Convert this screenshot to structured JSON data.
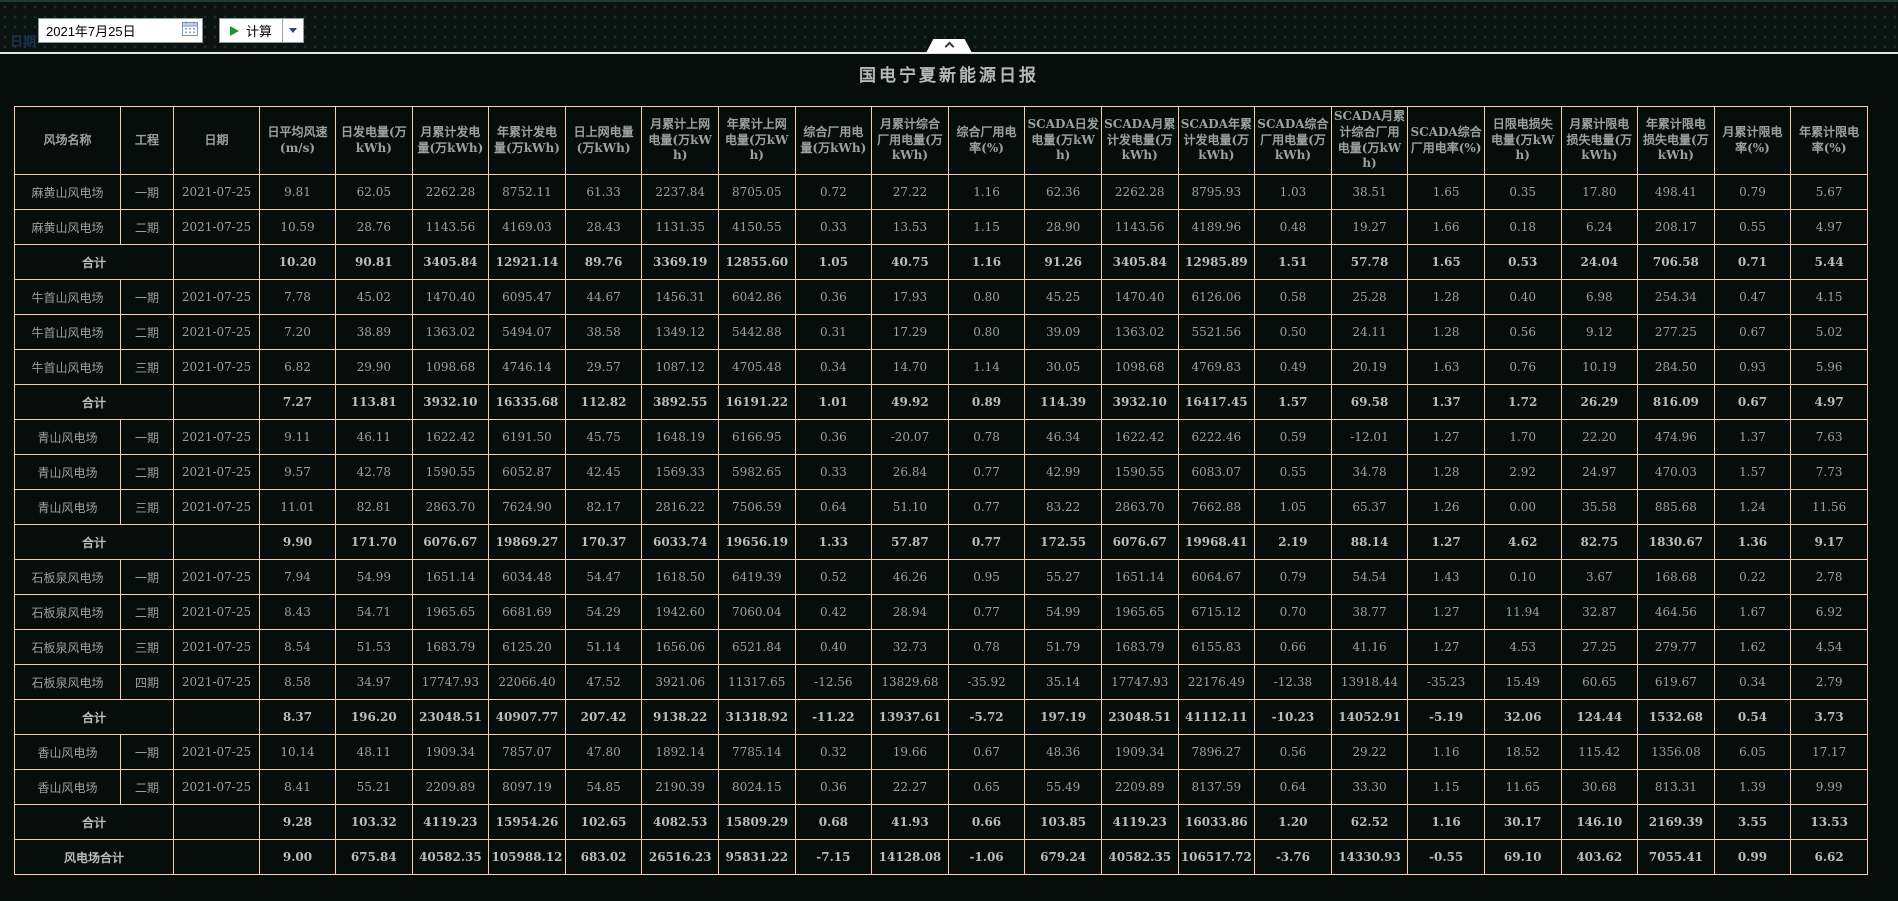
{
  "toolbar": {
    "date_label": "日期",
    "date_value": "2021年7月25日",
    "calc_button_label": "计算"
  },
  "report": {
    "title": "国电宁夏新能源日报"
  },
  "colors": {
    "table_border": "#f5cbb5",
    "table_text": "#9ba19f",
    "toolbar_bg": "#0b1310",
    "content_bg": "#070d0a",
    "play_green": "#169a2c"
  },
  "table": {
    "headers": [
      "风场名称",
      "工程",
      "日期",
      "日平均风速(m/s)",
      "日发电量(万kWh)",
      "月累计发电量(万kWh)",
      "年累计发电量(万kWh)",
      "日上网电量(万kWh)",
      "月累计上网电量(万kWh)",
      "年累计上网电量(万kWh)",
      "综合厂用电量(万kWh)",
      "月累计综合厂用电量(万kWh)",
      "综合厂用电率(%)",
      "SCADA日发电量(万kWh)",
      "SCADA月累计发电量(万kWh)",
      "SCADA年累计发电量(万kWh)",
      "SCADA综合厂用电量(万kWh)",
      "SCADA月累计综合厂用电量(万kWh)",
      "SCADA综合厂用电率(%)",
      "日限电损失电量(万kWh)",
      "月累计限电损失电量(万kWh)",
      "年累计限电损失电量(万kWh)",
      "月累计限电率(%)",
      "年累计限电率(%)"
    ],
    "rows": [
      {
        "total": false,
        "cells": [
          "麻黄山风电场",
          "一期",
          "2021-07-25",
          "9.81",
          "62.05",
          "2262.28",
          "8752.11",
          "61.33",
          "2237.84",
          "8705.05",
          "0.72",
          "27.22",
          "1.16",
          "62.36",
          "2262.28",
          "8795.93",
          "1.03",
          "38.51",
          "1.65",
          "0.35",
          "17.80",
          "498.41",
          "0.79",
          "5.67"
        ]
      },
      {
        "total": false,
        "cells": [
          "麻黄山风电场",
          "二期",
          "2021-07-25",
          "10.59",
          "28.76",
          "1143.56",
          "4169.03",
          "28.43",
          "1131.35",
          "4150.55",
          "0.33",
          "13.53",
          "1.15",
          "28.90",
          "1143.56",
          "4189.96",
          "0.48",
          "19.27",
          "1.66",
          "0.18",
          "6.24",
          "208.17",
          "0.55",
          "4.97"
        ]
      },
      {
        "total": true,
        "cells": [
          "合计",
          "",
          "",
          "10.20",
          "90.81",
          "3405.84",
          "12921.14",
          "89.76",
          "3369.19",
          "12855.60",
          "1.05",
          "40.75",
          "1.16",
          "91.26",
          "3405.84",
          "12985.89",
          "1.51",
          "57.78",
          "1.65",
          "0.53",
          "24.04",
          "706.58",
          "0.71",
          "5.44"
        ]
      },
      {
        "total": false,
        "cells": [
          "牛首山风电场",
          "一期",
          "2021-07-25",
          "7.78",
          "45.02",
          "1470.40",
          "6095.47",
          "44.67",
          "1456.31",
          "6042.86",
          "0.36",
          "17.93",
          "0.80",
          "45.25",
          "1470.40",
          "6126.06",
          "0.58",
          "25.28",
          "1.28",
          "0.40",
          "6.98",
          "254.34",
          "0.47",
          "4.15"
        ]
      },
      {
        "total": false,
        "cells": [
          "牛首山风电场",
          "二期",
          "2021-07-25",
          "7.20",
          "38.89",
          "1363.02",
          "5494.07",
          "38.58",
          "1349.12",
          "5442.88",
          "0.31",
          "17.29",
          "0.80",
          "39.09",
          "1363.02",
          "5521.56",
          "0.50",
          "24.11",
          "1.28",
          "0.56",
          "9.12",
          "277.25",
          "0.67",
          "5.02"
        ]
      },
      {
        "total": false,
        "cells": [
          "牛首山风电场",
          "三期",
          "2021-07-25",
          "6.82",
          "29.90",
          "1098.68",
          "4746.14",
          "29.57",
          "1087.12",
          "4705.48",
          "0.34",
          "14.70",
          "1.14",
          "30.05",
          "1098.68",
          "4769.83",
          "0.49",
          "20.19",
          "1.63",
          "0.76",
          "10.19",
          "284.50",
          "0.93",
          "5.96"
        ]
      },
      {
        "total": true,
        "cells": [
          "合计",
          "",
          "",
          "7.27",
          "113.81",
          "3932.10",
          "16335.68",
          "112.82",
          "3892.55",
          "16191.22",
          "1.01",
          "49.92",
          "0.89",
          "114.39",
          "3932.10",
          "16417.45",
          "1.57",
          "69.58",
          "1.37",
          "1.72",
          "26.29",
          "816.09",
          "0.67",
          "4.97"
        ]
      },
      {
        "total": false,
        "cells": [
          "青山风电场",
          "一期",
          "2021-07-25",
          "9.11",
          "46.11",
          "1622.42",
          "6191.50",
          "45.75",
          "1648.19",
          "6166.95",
          "0.36",
          "-20.07",
          "0.78",
          "46.34",
          "1622.42",
          "6222.46",
          "0.59",
          "-12.01",
          "1.27",
          "1.70",
          "22.20",
          "474.96",
          "1.37",
          "7.63"
        ]
      },
      {
        "total": false,
        "cells": [
          "青山风电场",
          "二期",
          "2021-07-25",
          "9.57",
          "42.78",
          "1590.55",
          "6052.87",
          "42.45",
          "1569.33",
          "5982.65",
          "0.33",
          "26.84",
          "0.77",
          "42.99",
          "1590.55",
          "6083.07",
          "0.55",
          "34.78",
          "1.28",
          "2.92",
          "24.97",
          "470.03",
          "1.57",
          "7.73"
        ]
      },
      {
        "total": false,
        "cells": [
          "青山风电场",
          "三期",
          "2021-07-25",
          "11.01",
          "82.81",
          "2863.70",
          "7624.90",
          "82.17",
          "2816.22",
          "7506.59",
          "0.64",
          "51.10",
          "0.77",
          "83.22",
          "2863.70",
          "7662.88",
          "1.05",
          "65.37",
          "1.26",
          "0.00",
          "35.58",
          "885.68",
          "1.24",
          "11.56"
        ]
      },
      {
        "total": true,
        "cells": [
          "合计",
          "",
          "",
          "9.90",
          "171.70",
          "6076.67",
          "19869.27",
          "170.37",
          "6033.74",
          "19656.19",
          "1.33",
          "57.87",
          "0.77",
          "172.55",
          "6076.67",
          "19968.41",
          "2.19",
          "88.14",
          "1.27",
          "4.62",
          "82.75",
          "1830.67",
          "1.36",
          "9.17"
        ]
      },
      {
        "total": false,
        "cells": [
          "石板泉风电场",
          "一期",
          "2021-07-25",
          "7.94",
          "54.99",
          "1651.14",
          "6034.48",
          "54.47",
          "1618.50",
          "6419.39",
          "0.52",
          "46.26",
          "0.95",
          "55.27",
          "1651.14",
          "6064.67",
          "0.79",
          "54.54",
          "1.43",
          "0.10",
          "3.67",
          "168.68",
          "0.22",
          "2.78"
        ]
      },
      {
        "total": false,
        "cells": [
          "石板泉风电场",
          "二期",
          "2021-07-25",
          "8.43",
          "54.71",
          "1965.65",
          "6681.69",
          "54.29",
          "1942.60",
          "7060.04",
          "0.42",
          "28.94",
          "0.77",
          "54.99",
          "1965.65",
          "6715.12",
          "0.70",
          "38.77",
          "1.27",
          "11.94",
          "32.87",
          "464.56",
          "1.67",
          "6.92"
        ]
      },
      {
        "total": false,
        "cells": [
          "石板泉风电场",
          "三期",
          "2021-07-25",
          "8.54",
          "51.53",
          "1683.79",
          "6125.20",
          "51.14",
          "1656.06",
          "6521.84",
          "0.40",
          "32.73",
          "0.78",
          "51.79",
          "1683.79",
          "6155.83",
          "0.66",
          "41.16",
          "1.27",
          "4.53",
          "27.25",
          "279.77",
          "1.62",
          "4.54"
        ]
      },
      {
        "total": false,
        "cells": [
          "石板泉风电场",
          "四期",
          "2021-07-25",
          "8.58",
          "34.97",
          "17747.93",
          "22066.40",
          "47.52",
          "3921.06",
          "11317.65",
          "-12.56",
          "13829.68",
          "-35.92",
          "35.14",
          "17747.93",
          "22176.49",
          "-12.38",
          "13918.44",
          "-35.23",
          "15.49",
          "60.65",
          "619.67",
          "0.34",
          "2.79"
        ]
      },
      {
        "total": true,
        "cells": [
          "合计",
          "",
          "",
          "8.37",
          "196.20",
          "23048.51",
          "40907.77",
          "207.42",
          "9138.22",
          "31318.92",
          "-11.22",
          "13937.61",
          "-5.72",
          "197.19",
          "23048.51",
          "41112.11",
          "-10.23",
          "14052.91",
          "-5.19",
          "32.06",
          "124.44",
          "1532.68",
          "0.54",
          "3.73"
        ]
      },
      {
        "total": false,
        "cells": [
          "香山风电场",
          "一期",
          "2021-07-25",
          "10.14",
          "48.11",
          "1909.34",
          "7857.07",
          "47.80",
          "1892.14",
          "7785.14",
          "0.32",
          "19.66",
          "0.67",
          "48.36",
          "1909.34",
          "7896.27",
          "0.56",
          "29.22",
          "1.16",
          "18.52",
          "115.42",
          "1356.08",
          "6.05",
          "17.17"
        ]
      },
      {
        "total": false,
        "cells": [
          "香山风电场",
          "二期",
          "2021-07-25",
          "8.41",
          "55.21",
          "2209.89",
          "8097.19",
          "54.85",
          "2190.39",
          "8024.15",
          "0.36",
          "22.27",
          "0.65",
          "55.49",
          "2209.89",
          "8137.59",
          "0.64",
          "33.30",
          "1.15",
          "11.65",
          "30.68",
          "813.31",
          "1.39",
          "9.99"
        ]
      },
      {
        "total": true,
        "cells": [
          "合计",
          "",
          "",
          "9.28",
          "103.32",
          "4119.23",
          "15954.26",
          "102.65",
          "4082.53",
          "15809.29",
          "0.68",
          "41.93",
          "0.66",
          "103.85",
          "4119.23",
          "16033.86",
          "1.20",
          "62.52",
          "1.16",
          "30.17",
          "146.10",
          "2169.39",
          "3.55",
          "13.53"
        ]
      },
      {
        "total": true,
        "cells": [
          "风电场合计",
          "",
          "",
          "9.00",
          "675.84",
          "40582.35",
          "105988.12",
          "683.02",
          "26516.23",
          "95831.22",
          "-7.15",
          "14128.08",
          "-1.06",
          "679.24",
          "40582.35",
          "106517.72",
          "-3.76",
          "14330.93",
          "-0.55",
          "69.10",
          "403.62",
          "7055.41",
          "0.99",
          "6.62"
        ]
      }
    ]
  }
}
